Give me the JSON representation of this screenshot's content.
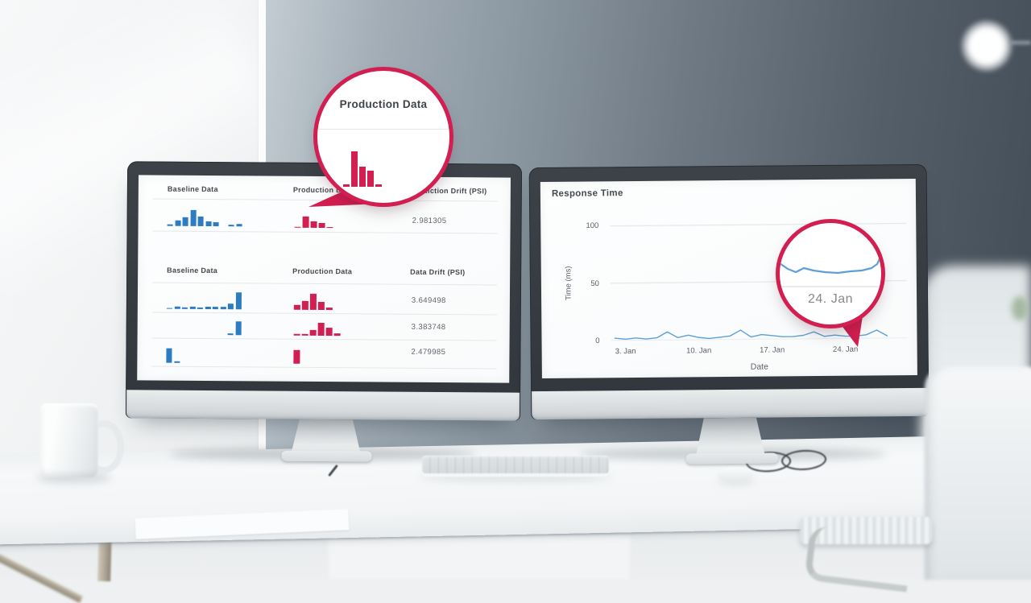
{
  "chart_data": [
    {
      "id": "prediction-drift-table",
      "type": "table",
      "columns": [
        "Baseline Data",
        "Production Data",
        "Prediction Drift (PSI)"
      ],
      "rows": [
        {
          "baseline_hist": [
            0.12,
            0.35,
            0.55,
            1,
            0.6,
            0.3,
            0.24,
            0,
            0.08,
            0.16
          ],
          "production_hist": [
            0.1,
            1,
            0.58,
            0.44,
            0.09
          ],
          "psi": "2.981305"
        }
      ]
    },
    {
      "id": "data-drift-table",
      "type": "table",
      "columns": [
        "Baseline Data",
        "Production Data",
        "Data Drift (PSI)"
      ],
      "rows": [
        {
          "baseline_hist": [
            0.06,
            0.12,
            0.1,
            0.16,
            0.1,
            0.16,
            0.16,
            0.16,
            0.35,
            1
          ],
          "production_hist": [
            0.32,
            0.56,
            1,
            0.48,
            0.13
          ],
          "psi": "3.649498"
        },
        {
          "baseline_hist": [
            0,
            0,
            0,
            0,
            0,
            0,
            0,
            0,
            0.09,
            1
          ],
          "production_hist": [
            0.13,
            0.13,
            0.45,
            1,
            0.6,
            0.16
          ],
          "psi": "3.383748"
        },
        {
          "baseline_hist": [
            1,
            0.1,
            0,
            0,
            0,
            0,
            0,
            0,
            0,
            0
          ],
          "production_hist": [
            1
          ],
          "psi": "2.479985"
        }
      ]
    },
    {
      "id": "response-time",
      "type": "line",
      "title": "Response Time",
      "xlabel": "Date",
      "ylabel": "Time (ms)",
      "ylim": [
        0,
        100
      ],
      "yticks": [
        "100",
        "50",
        "0"
      ],
      "xticks": [
        "3. Jan",
        "10. Jan",
        "17. Jan",
        "24. Jan"
      ],
      "days": [
        2,
        3,
        4,
        5,
        6,
        7,
        8,
        9,
        10,
        11,
        12,
        13,
        14,
        15,
        16,
        17,
        18,
        19,
        20,
        21,
        22,
        23,
        24,
        25,
        26,
        27,
        28
      ],
      "values_ms": [
        2,
        1,
        2,
        1,
        2,
        7,
        2,
        4,
        2,
        1,
        2,
        3,
        8,
        2,
        4,
        3,
        2,
        2,
        3,
        6,
        2,
        3,
        2,
        2,
        3,
        7,
        2
      ],
      "grid": true,
      "legend": false
    }
  ],
  "magnifiers": {
    "left": {
      "title": "Production Data",
      "bars": [
        0.07,
        1,
        0.57,
        0.45,
        0.07
      ]
    },
    "right": {
      "label": "24. Jan",
      "points": [
        [
          0,
          50
        ],
        [
          10,
          57
        ],
        [
          20,
          61
        ],
        [
          30,
          56
        ],
        [
          42,
          59
        ],
        [
          56,
          61
        ],
        [
          72,
          62
        ],
        [
          88,
          60
        ],
        [
          102,
          59
        ],
        [
          114,
          56
        ],
        [
          121,
          51
        ],
        [
          126,
          40
        ]
      ]
    }
  },
  "colors": {
    "baseline_bars": "#2d7cc1",
    "production_bars": "#d21e50",
    "callout": "#d21e50",
    "line": "#5f9fd6",
    "grid": "#e7eaec",
    "divider": "#e4e7ea",
    "heading_text": "#44494e",
    "value_text": "#5f646a",
    "axis_text": "#5a6066"
  }
}
